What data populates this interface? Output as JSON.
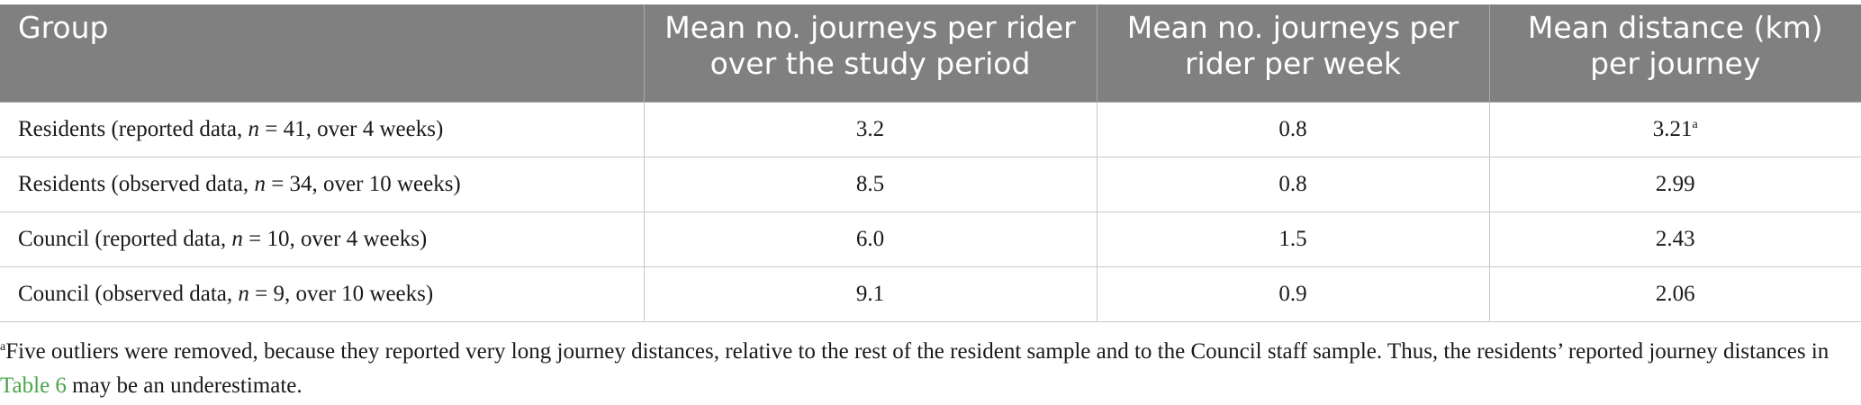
{
  "table": {
    "headers": [
      "Group",
      "Mean no. journeys per rider over the study period",
      "Mean no. journeys per rider per week",
      "Mean distance (km) per journey"
    ],
    "rows": [
      {
        "group_pre": "Residents (reported data, ",
        "n_symbol": "n",
        "group_post": " = 41, over 4 weeks)",
        "journeys_total": "3.2",
        "journeys_week": "0.8",
        "distance": "3.21",
        "distance_note": "a"
      },
      {
        "group_pre": "Residents (observed data, ",
        "n_symbol": "n",
        "group_post": " = 34, over 10 weeks)",
        "journeys_total": "8.5",
        "journeys_week": "0.8",
        "distance": "2.99",
        "distance_note": ""
      },
      {
        "group_pre": "Council (reported data, ",
        "n_symbol": "n",
        "group_post": " = 10, over 4 weeks)",
        "journeys_total": "6.0",
        "journeys_week": "1.5",
        "distance": "2.43",
        "distance_note": ""
      },
      {
        "group_pre": "Council (observed data, ",
        "n_symbol": "n",
        "group_post": " = 9, over 10 weeks)",
        "journeys_total": "9.1",
        "journeys_week": "0.9",
        "distance": "2.06",
        "distance_note": ""
      }
    ]
  },
  "footnote": {
    "marker": "a",
    "text_before": "Five outliers were removed, because they reported very long journey distances, relative to the rest of the resident sample and to the Council staff sample. Thus, the residents’ reported journey distances in ",
    "link_text": "Table 6",
    "text_after": " may be an underestimate.",
    "link_color": "#4aa54a"
  },
  "colors": {
    "header_bg": "#808080",
    "header_text": "#ffffff",
    "grid_line": "#c8c8c8"
  }
}
